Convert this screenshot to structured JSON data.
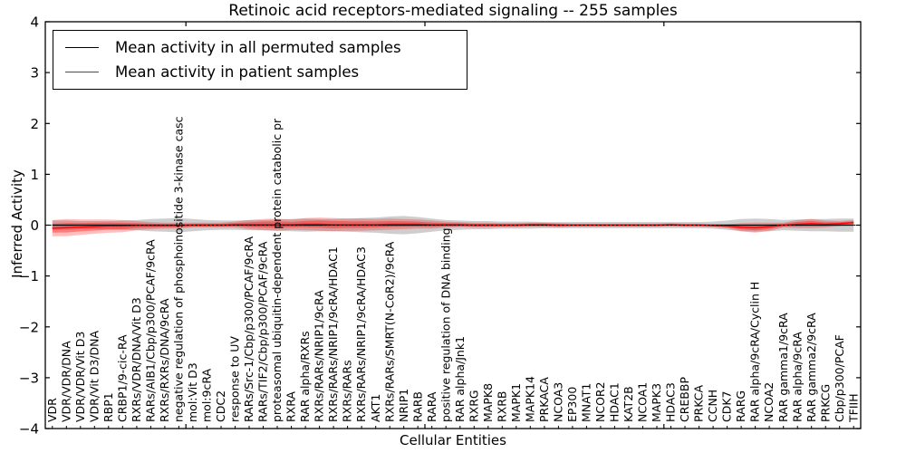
{
  "chart_data": {
    "type": "line",
    "title": "Retinoic acid receptors-mediated signaling -- 255 samples",
    "xlabel": "Cellular Entities",
    "ylabel": "Inferred Activity",
    "ylim": [
      -4,
      4
    ],
    "yticks": [
      4,
      3,
      2,
      1,
      0,
      -1,
      -2,
      -3,
      -4
    ],
    "grid": false,
    "legend_position": "upper left",
    "zero_line": {
      "style": "dotted",
      "color": "#000000",
      "y": 0
    },
    "major_tick_indices": [
      10,
      27,
      44
    ],
    "categories": [
      "VDR",
      "VDR/VDR/DNA",
      "VDR/VDR/Vit D3",
      "VDR/Vit D3/DNA",
      "RBP1",
      "CRBP1/9-cic-RA",
      "RXRs/VDR/DNA/Vit D3",
      "RARs/AIB1/Cbp/p300/PCAF/9cRA",
      "RXRs/RXRs/DNA/9cRA",
      "negative regulation of phosphoinositide 3-kinase casc",
      "mol:Vit D3",
      "mol:9cRA",
      "CDC2",
      "response to UV",
      "RARs/Src-1/Cbp/p300/PCAF/9cRA",
      "RARs/TIF2/Cbp/p300/PCAF/9cRA",
      "proteasomal ubiquitin-dependent protein catabolic pr",
      "RXRA",
      "RAR alpha/RXRs",
      "RXRs/RARs/NRIP1/9cRA",
      "RXRs/RARs/NRIP1/9cRA/HDAC1",
      "RXRs/RARs",
      "RXRs/RARs/NRIP1/9cRA/HDAC3",
      "AKT1",
      "RXRs/RARs/SMRT(N-CoR2)/9cRA",
      "NRIP1",
      "RARB",
      "RARA",
      "positive regulation of DNA binding",
      "RAR alpha/Jnk1",
      "RXRG",
      "MAPK8",
      "RXRB",
      "MAPK1",
      "MAPK14",
      "PRKACA",
      "NCOA3",
      "EP300",
      "MNAT1",
      "NCOR2",
      "HDAC1",
      "KAT2B",
      "NCOA1",
      "MAPK3",
      "HDAC3",
      "CREBBP",
      "PRKCA",
      "CCNH",
      "CDK7",
      "RARG",
      "RAR alpha/9cRA/Cyclin H",
      "NCOA2",
      "RAR gamma1/9cRA",
      "RAR alpha/9cRA",
      "RAR gamma2/9cRA",
      "PRKCG",
      "Cbp/p300/PCAF",
      "TFIIH"
    ],
    "series": [
      {
        "name": "Mean activity in all permuted samples",
        "color": "#000000",
        "band_color": "rgba(115,115,115,0.35)",
        "mean": [
          0,
          0,
          0,
          0,
          0,
          0,
          0,
          0,
          0,
          0,
          0,
          0,
          0,
          0,
          0,
          0,
          0,
          0,
          0,
          0,
          0,
          0,
          0,
          0,
          0,
          0,
          0,
          0,
          0,
          0,
          0,
          0,
          0,
          0,
          0,
          0,
          0,
          0,
          0,
          0,
          0,
          0,
          0,
          0,
          0,
          0,
          0,
          0,
          0,
          0,
          0,
          0,
          0,
          0,
          0,
          0,
          0,
          0
        ],
        "band_halfwidth": [
          0.09,
          0.09,
          0.08,
          0.08,
          0.08,
          0.09,
          0.1,
          0.12,
          0.13,
          0.14,
          0.12,
          0.1,
          0.09,
          0.09,
          0.1,
          0.1,
          0.11,
          0.12,
          0.13,
          0.12,
          0.12,
          0.13,
          0.14,
          0.15,
          0.17,
          0.18,
          0.16,
          0.13,
          0.1,
          0.09,
          0.08,
          0.08,
          0.07,
          0.07,
          0.07,
          0.06,
          0.06,
          0.06,
          0.06,
          0.06,
          0.06,
          0.06,
          0.06,
          0.06,
          0.06,
          0.06,
          0.06,
          0.07,
          0.09,
          0.12,
          0.13,
          0.12,
          0.1,
          0.11,
          0.12,
          0.12,
          0.13,
          0.13
        ]
      },
      {
        "name": "Mean activity in patient samples",
        "color": "#ff0000",
        "band_color": "rgba(255,0,0,0.25)",
        "band_color_inner": "rgba(255,0,0,0.35)",
        "mean": [
          -0.06,
          -0.05,
          -0.04,
          -0.03,
          -0.02,
          -0.02,
          -0.01,
          -0.01,
          -0.01,
          -0.01,
          0,
          0,
          0,
          0.01,
          0.01,
          0.01,
          0.01,
          0.01,
          0.02,
          0.02,
          0.01,
          0.01,
          0.01,
          0.01,
          0.02,
          0.02,
          0.02,
          0.01,
          0.01,
          0.01,
          0,
          0,
          0,
          0,
          0.01,
          0.01,
          0,
          0,
          0,
          0,
          0,
          0,
          0,
          0,
          0.01,
          0,
          0,
          -0.01,
          -0.02,
          -0.04,
          -0.05,
          -0.03,
          0,
          0.02,
          0.03,
          0.02,
          0.03,
          0.05
        ],
        "band_halfwidth": [
          0.16,
          0.17,
          0.15,
          0.14,
          0.13,
          0.12,
          0.09,
          0.07,
          0.06,
          0.06,
          0.05,
          0.05,
          0.05,
          0.06,
          0.09,
          0.11,
          0.12,
          0.1,
          0.12,
          0.13,
          0.13,
          0.12,
          0.12,
          0.11,
          0.11,
          0.1,
          0.09,
          0.08,
          0.06,
          0.05,
          0.05,
          0.05,
          0.04,
          0.04,
          0.04,
          0.04,
          0.04,
          0.03,
          0.03,
          0.03,
          0.03,
          0.03,
          0.03,
          0.03,
          0.03,
          0.03,
          0.03,
          0.03,
          0.04,
          0.08,
          0.1,
          0.08,
          0.05,
          0.08,
          0.09,
          0.07,
          0.05,
          0.05
        ]
      }
    ]
  }
}
